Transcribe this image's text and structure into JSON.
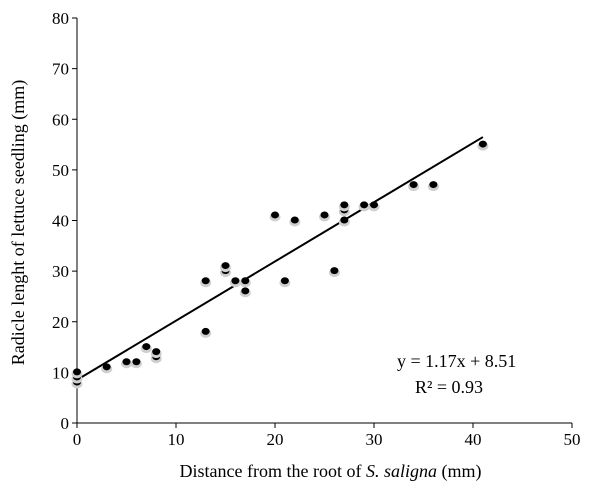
{
  "chart_data": {
    "type": "scatter",
    "title": "",
    "xlabel_parts": [
      "Distance from the root of ",
      "S. saligna",
      " (mm)"
    ],
    "ylabel": "Radicle lenght of lettuce seedling (mm)",
    "xlim": [
      0,
      50
    ],
    "ylim": [
      0,
      80
    ],
    "xticks": [
      0,
      10,
      20,
      30,
      40,
      50
    ],
    "yticks": [
      0,
      10,
      20,
      30,
      40,
      50,
      60,
      70,
      80
    ],
    "grid": false,
    "series": [
      {
        "points": [
          [
            0,
            8
          ],
          [
            0,
            9
          ],
          [
            0,
            10
          ],
          [
            3,
            11
          ],
          [
            5,
            12
          ],
          [
            6,
            12
          ],
          [
            7,
            15
          ],
          [
            8,
            13
          ],
          [
            8,
            14
          ],
          [
            13,
            18
          ],
          [
            13,
            28
          ],
          [
            15,
            30
          ],
          [
            15,
            31
          ],
          [
            16,
            28
          ],
          [
            17,
            26
          ],
          [
            17,
            28
          ],
          [
            20,
            41
          ],
          [
            21,
            28
          ],
          [
            22,
            40
          ],
          [
            25,
            41
          ],
          [
            26,
            30
          ],
          [
            27,
            40
          ],
          [
            27,
            42
          ],
          [
            27,
            43
          ],
          [
            29,
            43
          ],
          [
            30,
            43
          ],
          [
            34,
            47
          ],
          [
            36,
            47
          ],
          [
            41,
            55
          ]
        ]
      }
    ],
    "trendline": {
      "slope": 1.17,
      "intercept": 8.51,
      "x_range": [
        0,
        41
      ]
    },
    "annotations": {
      "equation": "y = 1.17x + 8.51",
      "r_squared": "R² = 0.93"
    }
  }
}
